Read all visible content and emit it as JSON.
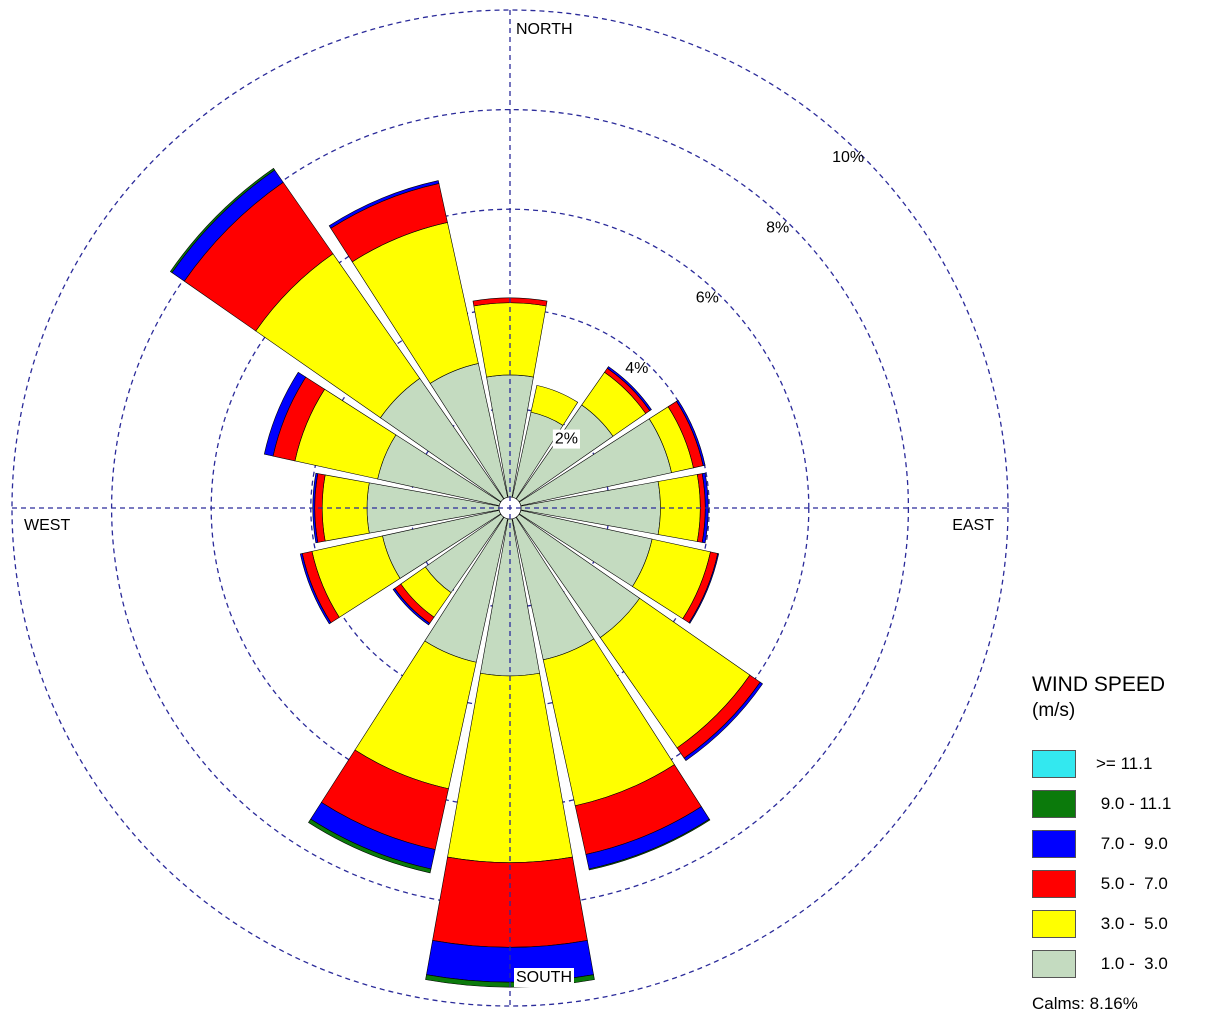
{
  "chart_data": {
    "type": "windrose",
    "title": "",
    "directions": [
      "N",
      "NNE",
      "NE",
      "ENE",
      "E",
      "ESE",
      "SE",
      "SSE",
      "S",
      "SSW",
      "SW",
      "WSW",
      "W",
      "WNW",
      "NW",
      "NNW"
    ],
    "direction_labels": {
      "north": "NORTH",
      "east": "EAST",
      "south": "SOUTH",
      "west": "WEST"
    },
    "radial_unit": "%",
    "radial_ticks": [
      {
        "value": 2,
        "label": "2%"
      },
      {
        "value": 4,
        "label": "4%"
      },
      {
        "value": 6,
        "label": "6%"
      },
      {
        "value": 8,
        "label": "8%"
      },
      {
        "value": 10,
        "label": "10%"
      }
    ],
    "max_ring": 10,
    "legend_title": "WIND SPEED",
    "legend_units": "(m/s)",
    "bins": [
      {
        "label": ">= 11.1",
        "color": "#33e8ef"
      },
      {
        "label": " 9.0 - 11.1",
        "color": "#0b7a0b"
      },
      {
        "label": " 7.0 -  9.0",
        "color": "#0000ff"
      },
      {
        "label": " 5.0 -  7.0",
        "color": "#ff0000"
      },
      {
        "label": " 3.0 -  5.0",
        "color": "#ffff00"
      },
      {
        "label": " 1.0 -  3.0",
        "color": "#c4dbc0"
      }
    ],
    "series_order_inner_to_outer": [
      "1.0 - 3.0",
      "3.0 - 5.0",
      "5.0 - 7.0",
      "7.0 - 9.0",
      "9.0 - 11.1",
      ">= 11.1"
    ],
    "data_percent": {
      "N": [
        2.45,
        1.45,
        0.1,
        0.0,
        0.0,
        0.0
      ],
      "NNE": [
        1.75,
        0.55,
        0.0,
        0.0,
        0.0,
        0.0
      ],
      "NE": [
        2.3,
        0.8,
        0.1,
        0.04,
        0.0,
        0.0
      ],
      "ENE": [
        3.1,
        0.45,
        0.2,
        0.04,
        0.0,
        0.0
      ],
      "E": [
        2.8,
        0.8,
        0.1,
        0.06,
        0.0,
        0.0
      ],
      "ESE": [
        2.7,
        1.2,
        0.15,
        0.02,
        0.0,
        0.0
      ],
      "SE": [
        2.95,
        2.7,
        0.25,
        0.06,
        0.0,
        0.0
      ],
      "SSE": [
        2.9,
        3.0,
        1.0,
        0.3,
        0.02,
        0.0
      ],
      "S": [
        3.15,
        3.75,
        1.7,
        0.7,
        0.1,
        0.0
      ],
      "SSW": [
        2.95,
        2.6,
        1.25,
        0.4,
        0.08,
        0.0
      ],
      "SW": [
        1.85,
        0.6,
        0.15,
        0.04,
        0.0,
        0.0
      ],
      "WSW": [
        2.4,
        1.45,
        0.2,
        0.04,
        0.0,
        0.0
      ],
      "W": [
        2.65,
        0.9,
        0.15,
        0.04,
        0.0,
        0.0
      ],
      "WNW": [
        2.5,
        1.7,
        0.45,
        0.18,
        0.0,
        0.0
      ],
      "NW": [
        2.95,
        3.05,
        1.75,
        0.3,
        0.04,
        0.0
      ],
      "NNW": [
        2.75,
        2.9,
        0.8,
        0.06,
        0.0,
        0.0
      ]
    },
    "calms_label": "Calms:",
    "calms_percent": "8.16%"
  }
}
